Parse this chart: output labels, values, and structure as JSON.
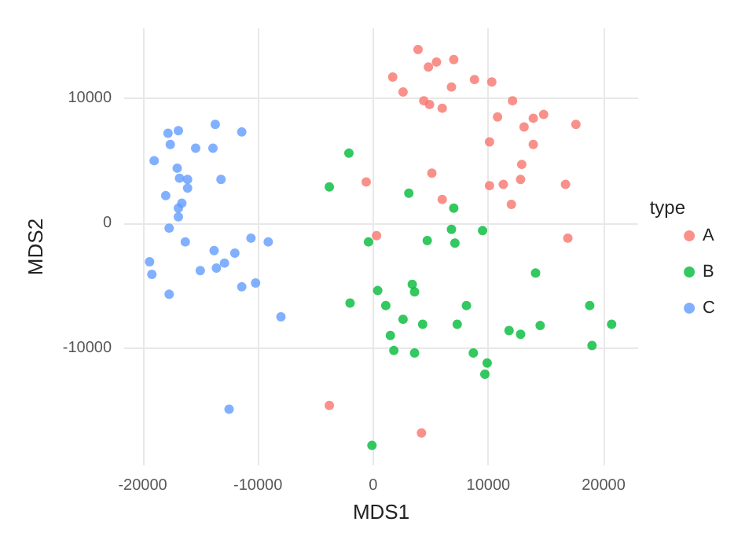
{
  "chart_data": {
    "type": "scatter",
    "xlabel": "MDS1",
    "ylabel": "MDS2",
    "legend_title": "type",
    "legend": "right",
    "grid": true,
    "marker": "circle",
    "xlim": [
      -21600,
      23000
    ],
    "ylim": [
      -19400,
      15600
    ],
    "xticks": [
      -20000,
      -10000,
      0,
      10000,
      20000
    ],
    "yticks": [
      -10000,
      0,
      10000
    ],
    "series": [
      {
        "name": "A",
        "color": "#f8766d",
        "x": [
          3900,
          4800,
          5500,
          7000,
          1700,
          8800,
          10300,
          2600,
          6800,
          4400,
          4900,
          6000,
          12100,
          10800,
          14800,
          13900,
          13100,
          17600,
          10100,
          13900,
          12900,
          5100,
          -600,
          12800,
          10100,
          11300,
          16700,
          6000,
          12000,
          300,
          16900,
          -3800,
          4200
        ],
        "values": [
          13900,
          12500,
          12900,
          13100,
          11700,
          11500,
          11300,
          10500,
          10900,
          9800,
          9500,
          9200,
          9800,
          8500,
          8700,
          8400,
          7700,
          7900,
          6500,
          6300,
          4700,
          4000,
          3300,
          3500,
          3000,
          3100,
          3100,
          1900,
          1500,
          -1000,
          -1200,
          -14600,
          -16800
        ]
      },
      {
        "name": "B",
        "color": "#00ba38",
        "x": [
          -2100,
          -3800,
          3100,
          7000,
          6800,
          9500,
          -400,
          4700,
          7100,
          14100,
          3400,
          3600,
          400,
          -2000,
          1100,
          8100,
          18800,
          2600,
          4300,
          7300,
          14500,
          20700,
          11800,
          12800,
          1500,
          1800,
          3600,
          8700,
          9900,
          9700,
          19000,
          -100
        ],
        "values": [
          5600,
          2900,
          2400,
          1200,
          -500,
          -600,
          -1500,
          -1400,
          -1600,
          -4000,
          -4900,
          -5500,
          -5400,
          -6400,
          -6600,
          -6600,
          -6600,
          -7700,
          -8100,
          -8100,
          -8200,
          -8100,
          -8600,
          -8900,
          -9000,
          -10200,
          -10400,
          -10400,
          -11200,
          -12100,
          -9800,
          -17800
        ]
      },
      {
        "name": "C",
        "color": "#619cff",
        "x": [
          -13700,
          -16900,
          -17800,
          -11400,
          -17600,
          -15400,
          -13900,
          -19000,
          -17000,
          -16800,
          -16100,
          -13200,
          -16100,
          -18000,
          -16600,
          -16900,
          -16900,
          -17700,
          -16300,
          -10600,
          -9100,
          -13800,
          -12000,
          -19400,
          -12900,
          -13600,
          -15000,
          -19200,
          -11400,
          -10200,
          -17700,
          -8000,
          -12500
        ],
        "values": [
          7900,
          7400,
          7200,
          7300,
          6300,
          6000,
          6000,
          5000,
          4400,
          3600,
          3500,
          3500,
          2800,
          2200,
          1600,
          1200,
          500,
          -400,
          -1500,
          -1200,
          -1500,
          -2200,
          -2400,
          -3100,
          -3200,
          -3600,
          -3800,
          -4100,
          -5100,
          -4800,
          -5700,
          -7500,
          -14900
        ]
      }
    ]
  }
}
